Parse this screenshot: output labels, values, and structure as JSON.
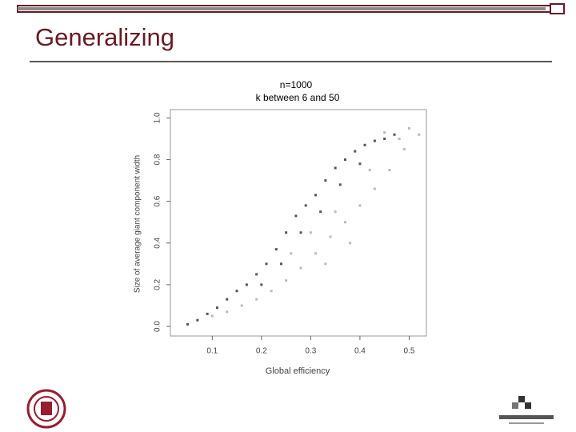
{
  "slide_title": "Generalizing",
  "chart_data": {
    "type": "scatter",
    "title": "n=1000",
    "subtitle": "k between 6 and 50",
    "x_label": "Global efficiency",
    "y_label": "Size of average giant component width",
    "xlim": [
      0.015,
      0.535
    ],
    "ylim": [
      -0.046,
      1.04
    ],
    "xticks": [
      0.1,
      0.2,
      0.3,
      0.4,
      0.5
    ],
    "yticks": [
      {
        "value": 0,
        "label": "0.0"
      },
      0.2,
      0.4,
      0.6,
      0.8,
      {
        "value": 1,
        "label": "1.0"
      }
    ],
    "series": [
      {
        "color": "#555555",
        "x": [
          0.05,
          0.07,
          0.09,
          0.11,
          0.13,
          0.15,
          0.17,
          0.19,
          0.21,
          0.23,
          0.25,
          0.27,
          0.29,
          0.31,
          0.33,
          0.35,
          0.37,
          0.39,
          0.41,
          0.43,
          0.45,
          0.47,
          0.2,
          0.24,
          0.28,
          0.32,
          0.36,
          0.4
        ],
        "values": [
          0.01,
          0.03,
          0.06,
          0.09,
          0.13,
          0.17,
          0.2,
          0.25,
          0.3,
          0.37,
          0.45,
          0.53,
          0.58,
          0.63,
          0.7,
          0.76,
          0.8,
          0.84,
          0.87,
          0.89,
          0.9,
          0.92,
          0.2,
          0.3,
          0.45,
          0.55,
          0.68,
          0.78
        ]
      },
      {
        "color": "#bbbbbb",
        "x": [
          0.1,
          0.13,
          0.16,
          0.19,
          0.22,
          0.25,
          0.28,
          0.31,
          0.34,
          0.37,
          0.4,
          0.43,
          0.46,
          0.49,
          0.52,
          0.5,
          0.45,
          0.3,
          0.35,
          0.42,
          0.48,
          0.26,
          0.33,
          0.38
        ],
        "values": [
          0.05,
          0.07,
          0.1,
          0.13,
          0.17,
          0.22,
          0.28,
          0.35,
          0.43,
          0.5,
          0.58,
          0.66,
          0.75,
          0.85,
          0.92,
          0.95,
          0.93,
          0.45,
          0.55,
          0.75,
          0.9,
          0.35,
          0.3,
          0.4
        ]
      }
    ]
  }
}
